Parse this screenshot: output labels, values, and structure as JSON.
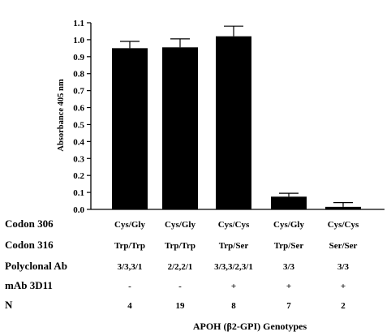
{
  "chart_data": {
    "type": "bar",
    "ylabel": "Absorbance 405 nm",
    "xlabel": "APOH (β2-GPI) Genotypes",
    "ylim": [
      0,
      1.1
    ],
    "yticks": [
      "0.0",
      "0.1",
      "0.2",
      "0.3",
      "0.4",
      "0.5",
      "0.6",
      "0.7",
      "0.8",
      "0.9",
      "1.0",
      "1.1"
    ],
    "bar_color": "#000000",
    "bars": [
      {
        "value": 0.95,
        "error": 0.04
      },
      {
        "value": 0.955,
        "error": 0.05
      },
      {
        "value": 1.02,
        "error": 0.06
      },
      {
        "value": 0.075,
        "error": 0.02
      },
      {
        "value": 0.015,
        "error": 0.025
      }
    ],
    "table": {
      "rows": [
        {
          "label": "Codon 306",
          "values": [
            "Cys/Gly",
            "Cys/Gly",
            "Cys/Cys",
            "Cys/Gly",
            "Cys/Cys"
          ]
        },
        {
          "label": "Codon 316",
          "values": [
            "Trp/Trp",
            "Trp/Trp",
            "Trp/Ser",
            "Trp/Ser",
            "Ser/Ser"
          ]
        },
        {
          "label": "Polyclonal Ab",
          "values": [
            "3/3,3/1",
            "2/2,2/1",
            "3/3,3/2,3/1",
            "3/3",
            "3/3"
          ]
        },
        {
          "label": "mAb 3D11",
          "values": [
            "-",
            "-",
            "+",
            "+",
            "+"
          ]
        },
        {
          "label": "N",
          "values": [
            "4",
            "19",
            "8",
            "7",
            "2"
          ]
        }
      ]
    }
  }
}
